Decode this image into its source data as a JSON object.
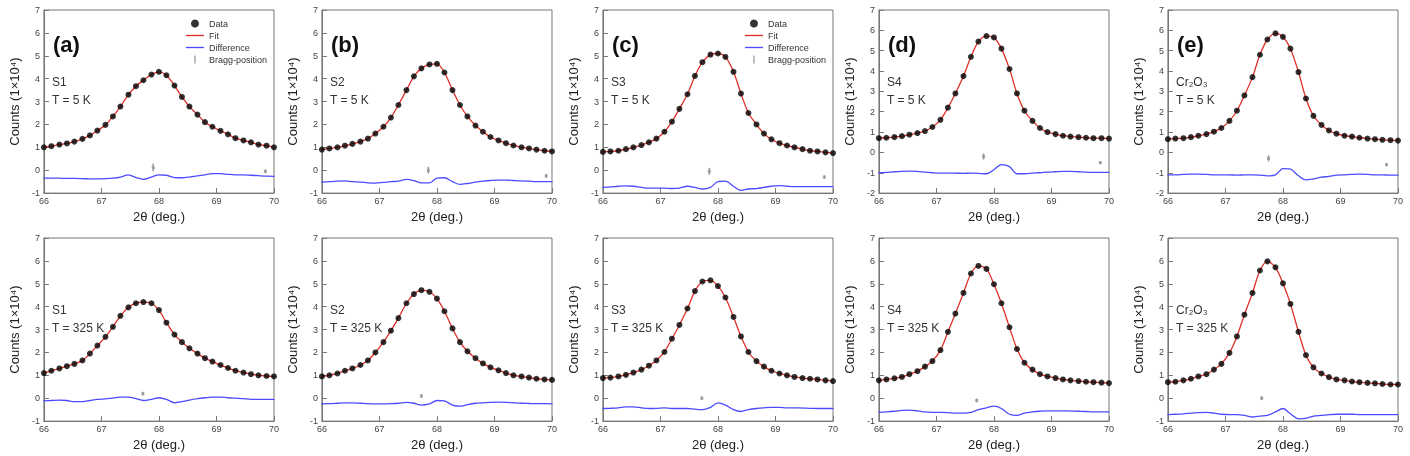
{
  "chart_data": [
    {
      "type": "scatter",
      "title": "(a)",
      "annotations": [
        "S1",
        "T = 5 K"
      ],
      "xlabel": "2θ (deg.)",
      "ylabel": "Counts (1×10⁴)",
      "xlim": [
        66,
        70
      ],
      "xticks": [
        66,
        67,
        68,
        69,
        70
      ],
      "ylim": [
        -1,
        7
      ],
      "yticks": [
        -1,
        0,
        1,
        2,
        3,
        4,
        5,
        6,
        7
      ],
      "grid": false,
      "legend": "top right",
      "x": [
        66.0,
        66.13,
        66.27,
        66.4,
        66.53,
        66.67,
        66.8,
        66.93,
        67.07,
        67.2,
        67.33,
        67.47,
        67.6,
        67.73,
        67.87,
        68.0,
        68.13,
        68.27,
        68.4,
        68.53,
        68.67,
        68.8,
        68.93,
        69.07,
        69.2,
        69.33,
        69.47,
        69.6,
        69.73,
        69.87,
        70.0
      ],
      "series": [
        {
          "name": "Data",
          "marker": "circle",
          "color": "#000000",
          "values": [
            1.0,
            1.05,
            1.12,
            1.17,
            1.25,
            1.37,
            1.52,
            1.73,
            1.98,
            2.35,
            2.78,
            3.3,
            3.67,
            3.93,
            4.18,
            4.3,
            4.15,
            3.7,
            3.2,
            2.78,
            2.43,
            2.1,
            1.9,
            1.72,
            1.57,
            1.4,
            1.3,
            1.22,
            1.12,
            1.07,
            1.0
          ]
        },
        {
          "name": "Fit",
          "type": "line",
          "marker": "none",
          "color": "#e0302a",
          "values": [
            1.0,
            1.05,
            1.12,
            1.17,
            1.25,
            1.37,
            1.52,
            1.73,
            1.98,
            2.35,
            2.78,
            3.3,
            3.67,
            3.93,
            4.18,
            4.3,
            4.15,
            3.7,
            3.2,
            2.78,
            2.43,
            2.1,
            1.9,
            1.72,
            1.57,
            1.4,
            1.3,
            1.22,
            1.12,
            1.07,
            1.0
          ]
        },
        {
          "name": "Difference",
          "type": "line",
          "marker": "none",
          "color": "#4b4bff",
          "values": [
            -0.35,
            -0.35,
            -0.35,
            -0.36,
            -0.36,
            -0.37,
            -0.38,
            -0.38,
            -0.37,
            -0.35,
            -0.3,
            -0.2,
            -0.32,
            -0.4,
            -0.3,
            -0.2,
            -0.22,
            -0.32,
            -0.33,
            -0.3,
            -0.25,
            -0.2,
            -0.15,
            -0.15,
            -0.18,
            -0.2,
            -0.2,
            -0.22,
            -0.24,
            -0.26,
            -0.27
          ]
        },
        {
          "name": "Bragg-position",
          "marker": "square",
          "color": "#999999",
          "x": [
            67.9,
            69.85
          ],
          "values": [
            0.12,
            -0.05
          ],
          "errors": [
            0.17,
            0.08
          ]
        }
      ]
    },
    {
      "type": "scatter",
      "title": "(b)",
      "annotations": [
        "S2",
        "T = 5 K"
      ],
      "xlabel": "2θ (deg.)",
      "ylabel": "Counts (1×10⁴)",
      "xlim": [
        66,
        70
      ],
      "xticks": [
        66,
        67,
        68,
        69,
        70
      ],
      "ylim": [
        -1,
        7
      ],
      "yticks": [
        -1,
        0,
        1,
        2,
        3,
        4,
        5,
        6,
        7
      ],
      "grid": false,
      "x": [
        66.0,
        66.13,
        66.27,
        66.4,
        66.53,
        66.67,
        66.8,
        66.93,
        67.07,
        67.2,
        67.33,
        67.47,
        67.6,
        67.73,
        67.87,
        68.0,
        68.13,
        68.27,
        68.4,
        68.53,
        68.67,
        68.8,
        68.93,
        69.07,
        69.2,
        69.33,
        69.47,
        69.6,
        69.73,
        69.87,
        70.0
      ],
      "series": [
        {
          "marker": "circle",
          "color": "#000000",
          "values": [
            0.9,
            0.95,
            1.0,
            1.07,
            1.15,
            1.25,
            1.38,
            1.6,
            1.9,
            2.3,
            2.85,
            3.5,
            4.1,
            4.45,
            4.62,
            4.65,
            4.27,
            3.5,
            2.85,
            2.35,
            1.95,
            1.68,
            1.45,
            1.3,
            1.18,
            1.08,
            1.0,
            0.95,
            0.9,
            0.85,
            0.82
          ]
        },
        {
          "type": "line",
          "marker": "none",
          "color": "#e0302a",
          "values": [
            0.9,
            0.95,
            1.0,
            1.07,
            1.15,
            1.25,
            1.38,
            1.6,
            1.9,
            2.3,
            2.85,
            3.5,
            4.1,
            4.45,
            4.62,
            4.65,
            4.27,
            3.5,
            2.85,
            2.35,
            1.95,
            1.68,
            1.45,
            1.3,
            1.18,
            1.08,
            1.0,
            0.95,
            0.9,
            0.85,
            0.82
          ]
        },
        {
          "type": "line",
          "marker": "none",
          "color": "#4b4bff",
          "values": [
            -0.52,
            -0.5,
            -0.48,
            -0.47,
            -0.5,
            -0.52,
            -0.55,
            -0.56,
            -0.53,
            -0.5,
            -0.48,
            -0.4,
            -0.45,
            -0.55,
            -0.55,
            -0.35,
            -0.33,
            -0.5,
            -0.62,
            -0.58,
            -0.52,
            -0.48,
            -0.45,
            -0.43,
            -0.43,
            -0.45,
            -0.47,
            -0.48,
            -0.5,
            -0.5,
            -0.5
          ]
        },
        {
          "marker": "square",
          "color": "#999999",
          "x": [
            67.85,
            69.9
          ],
          "values": [
            0.0,
            -0.25
          ],
          "errors": [
            0.15,
            0.08
          ]
        }
      ]
    },
    {
      "type": "scatter",
      "title": "(c)",
      "annotations": [
        "S3",
        "T = 5 K"
      ],
      "xlabel": "2θ (deg.)",
      "ylabel": "Counts (1×10⁴)",
      "xlim": [
        66,
        70
      ],
      "xticks": [
        66,
        67,
        68,
        69,
        70
      ],
      "ylim": [
        -1,
        7
      ],
      "yticks": [
        -1,
        0,
        1,
        2,
        3,
        4,
        5,
        6,
        7
      ],
      "grid": false,
      "legend": "top right",
      "x": [
        66.0,
        66.13,
        66.27,
        66.4,
        66.53,
        66.67,
        66.8,
        66.93,
        67.07,
        67.2,
        67.33,
        67.47,
        67.6,
        67.73,
        67.87,
        68.0,
        68.13,
        68.27,
        68.4,
        68.53,
        68.67,
        68.8,
        68.93,
        69.07,
        69.2,
        69.33,
        69.47,
        69.6,
        69.73,
        69.87,
        70.0
      ],
      "series": [
        {
          "name": "Data",
          "marker": "circle",
          "color": "#000000",
          "values": [
            0.8,
            0.82,
            0.85,
            0.92,
            1.0,
            1.1,
            1.22,
            1.38,
            1.68,
            2.12,
            2.68,
            3.32,
            4.12,
            4.72,
            5.05,
            5.1,
            4.95,
            4.3,
            3.35,
            2.5,
            2.0,
            1.6,
            1.35,
            1.18,
            1.08,
            1.0,
            0.92,
            0.85,
            0.82,
            0.78,
            0.75
          ]
        },
        {
          "name": "Fit",
          "type": "line",
          "marker": "none",
          "color": "#e0302a",
          "values": [
            0.8,
            0.82,
            0.85,
            0.92,
            1.0,
            1.1,
            1.22,
            1.38,
            1.68,
            2.12,
            2.68,
            3.32,
            4.12,
            4.72,
            5.05,
            5.1,
            4.95,
            4.3,
            3.35,
            2.5,
            2.0,
            1.6,
            1.35,
            1.18,
            1.08,
            1.0,
            0.92,
            0.85,
            0.82,
            0.78,
            0.75
          ]
        },
        {
          "name": "Difference",
          "type": "line",
          "marker": "none",
          "color": "#4b4bff",
          "values": [
            -0.75,
            -0.73,
            -0.7,
            -0.68,
            -0.7,
            -0.75,
            -0.78,
            -0.78,
            -0.78,
            -0.8,
            -0.78,
            -0.7,
            -0.75,
            -0.82,
            -0.75,
            -0.5,
            -0.48,
            -0.7,
            -0.88,
            -0.82,
            -0.8,
            -0.75,
            -0.7,
            -0.67,
            -0.7,
            -0.72,
            -0.72,
            -0.72,
            -0.72,
            -0.72,
            -0.72
          ]
        },
        {
          "name": "Bragg-position",
          "marker": "square",
          "color": "#999999",
          "x": [
            67.85,
            69.85
          ],
          "values": [
            -0.05,
            -0.3
          ],
          "errors": [
            0.15,
            0.08
          ]
        }
      ]
    },
    {
      "type": "scatter",
      "title": "(d)",
      "annotations": [
        "S4",
        "T = 5 K"
      ],
      "xlabel": "2θ (deg.)",
      "ylabel": "Counts (1×10⁴)",
      "xlim": [
        66,
        70
      ],
      "xticks": [
        66,
        67,
        68,
        69,
        70
      ],
      "ylim": [
        -2,
        7
      ],
      "yticks": [
        -2,
        -1,
        0,
        1,
        2,
        3,
        4,
        5,
        6,
        7
      ],
      "grid": false,
      "x": [
        66.0,
        66.13,
        66.27,
        66.4,
        66.53,
        66.67,
        66.8,
        66.93,
        67.07,
        67.2,
        67.33,
        67.47,
        67.6,
        67.73,
        67.87,
        68.0,
        68.13,
        68.27,
        68.4,
        68.53,
        68.67,
        68.8,
        68.93,
        69.07,
        69.2,
        69.33,
        69.47,
        69.6,
        69.73,
        69.87,
        70.0
      ],
      "series": [
        {
          "marker": "circle",
          "color": "#000000",
          "values": [
            0.7,
            0.72,
            0.75,
            0.8,
            0.87,
            0.95,
            1.05,
            1.25,
            1.6,
            2.2,
            2.9,
            3.75,
            4.7,
            5.45,
            5.72,
            5.65,
            5.1,
            4.1,
            2.9,
            2.05,
            1.55,
            1.2,
            1.0,
            0.9,
            0.82,
            0.78,
            0.75,
            0.72,
            0.7,
            0.7,
            0.68
          ]
        },
        {
          "type": "line",
          "marker": "none",
          "color": "#e0302a",
          "values": [
            0.7,
            0.72,
            0.75,
            0.8,
            0.87,
            0.95,
            1.05,
            1.25,
            1.6,
            2.2,
            2.9,
            3.75,
            4.7,
            5.45,
            5.72,
            5.65,
            5.1,
            4.1,
            2.9,
            2.05,
            1.55,
            1.2,
            1.0,
            0.9,
            0.82,
            0.78,
            0.75,
            0.72,
            0.7,
            0.7,
            0.68
          ]
        },
        {
          "type": "line",
          "marker": "none",
          "color": "#4b4bff",
          "values": [
            -1.0,
            -0.98,
            -0.95,
            -0.93,
            -0.92,
            -0.93,
            -0.97,
            -1.0,
            -1.02,
            -1.02,
            -1.02,
            -1.03,
            -1.02,
            -1.03,
            -1.05,
            -0.85,
            -0.6,
            -0.7,
            -1.05,
            -1.05,
            -1.02,
            -1.0,
            -0.97,
            -0.95,
            -0.93,
            -0.93,
            -0.95,
            -0.97,
            -0.98,
            -0.98,
            -0.98
          ]
        },
        {
          "marker": "square",
          "color": "#999999",
          "x": [
            67.82,
            69.85
          ],
          "values": [
            -0.2,
            -0.5
          ],
          "errors": [
            0.15,
            0.08
          ]
        }
      ]
    },
    {
      "type": "scatter",
      "title": "(e)",
      "annotations": [
        "Cr₂O₃",
        "T = 5 K"
      ],
      "xlabel": "2θ (deg.)",
      "ylabel": "Counts (1×10⁴)",
      "xlim": [
        66,
        70
      ],
      "xticks": [
        66,
        67,
        68,
        69,
        70
      ],
      "ylim": [
        -2,
        7
      ],
      "yticks": [
        -2,
        -1,
        0,
        1,
        2,
        3,
        4,
        5,
        6,
        7
      ],
      "grid": false,
      "x": [
        66.0,
        66.13,
        66.27,
        66.4,
        66.53,
        66.67,
        66.8,
        66.93,
        67.07,
        67.2,
        67.33,
        67.47,
        67.6,
        67.73,
        67.87,
        68.0,
        68.13,
        68.27,
        68.4,
        68.53,
        68.67,
        68.8,
        68.93,
        69.07,
        69.2,
        69.33,
        69.47,
        69.6,
        69.73,
        69.87,
        70.0
      ],
      "series": [
        {
          "marker": "circle",
          "color": "#000000",
          "values": [
            0.65,
            0.68,
            0.7,
            0.75,
            0.82,
            0.9,
            1.02,
            1.2,
            1.55,
            2.05,
            2.8,
            3.7,
            4.8,
            5.55,
            5.85,
            5.68,
            5.1,
            3.95,
            2.65,
            1.8,
            1.35,
            1.08,
            0.92,
            0.82,
            0.78,
            0.72,
            0.68,
            0.65,
            0.62,
            0.6,
            0.58
          ]
        },
        {
          "type": "line",
          "marker": "none",
          "color": "#e0302a",
          "values": [
            0.65,
            0.68,
            0.7,
            0.75,
            0.82,
            0.9,
            1.02,
            1.2,
            1.55,
            2.05,
            2.8,
            3.7,
            4.8,
            5.55,
            5.85,
            5.68,
            5.1,
            3.95,
            2.65,
            1.8,
            1.35,
            1.08,
            0.92,
            0.82,
            0.78,
            0.72,
            0.68,
            0.65,
            0.62,
            0.6,
            0.58
          ]
        },
        {
          "type": "line",
          "marker": "none",
          "color": "#4b4bff",
          "values": [
            -1.1,
            -1.1,
            -1.08,
            -1.07,
            -1.07,
            -1.08,
            -1.1,
            -1.1,
            -1.1,
            -1.12,
            -1.1,
            -1.1,
            -1.12,
            -1.15,
            -1.1,
            -0.8,
            -0.82,
            -1.15,
            -1.35,
            -1.3,
            -1.22,
            -1.18,
            -1.12,
            -1.1,
            -1.08,
            -1.07,
            -1.08,
            -1.1,
            -1.1,
            -1.12,
            -1.12
          ]
        },
        {
          "marker": "square",
          "color": "#999999",
          "x": [
            67.75,
            69.8
          ],
          "values": [
            -0.3,
            -0.6
          ],
          "errors": [
            0.15,
            0.08
          ]
        }
      ]
    },
    {
      "type": "scatter",
      "annotations": [
        "S1",
        "T = 325 K"
      ],
      "xlabel": "2θ (deg.)",
      "ylabel": "Counts (1×10⁴)",
      "xlim": [
        66,
        70
      ],
      "xticks": [
        66,
        67,
        68,
        69,
        70
      ],
      "ylim": [
        -1,
        7
      ],
      "yticks": [
        -1,
        0,
        1,
        2,
        3,
        4,
        5,
        6,
        7
      ],
      "grid": false,
      "x": [
        66.0,
        66.13,
        66.27,
        66.4,
        66.53,
        66.67,
        66.8,
        66.93,
        67.07,
        67.2,
        67.33,
        67.47,
        67.6,
        67.73,
        67.87,
        68.0,
        68.13,
        68.27,
        68.4,
        68.53,
        68.67,
        68.8,
        68.93,
        69.07,
        69.2,
        69.33,
        69.47,
        69.6,
        69.73,
        69.87,
        70.0
      ],
      "series": [
        {
          "marker": "circle",
          "color": "#000000",
          "values": [
            1.1,
            1.2,
            1.3,
            1.4,
            1.5,
            1.65,
            1.95,
            2.3,
            2.68,
            3.12,
            3.6,
            3.97,
            4.15,
            4.2,
            4.15,
            3.85,
            3.3,
            2.78,
            2.45,
            2.18,
            1.95,
            1.75,
            1.6,
            1.45,
            1.32,
            1.2,
            1.12,
            1.05,
            1.0,
            0.97,
            0.95
          ]
        },
        {
          "type": "line",
          "marker": "none",
          "color": "#e0302a",
          "values": [
            1.1,
            1.2,
            1.3,
            1.4,
            1.5,
            1.65,
            1.95,
            2.3,
            2.68,
            3.12,
            3.6,
            3.97,
            4.15,
            4.2,
            4.15,
            3.85,
            3.3,
            2.78,
            2.45,
            2.18,
            1.95,
            1.75,
            1.6,
            1.45,
            1.32,
            1.2,
            1.12,
            1.05,
            1.0,
            0.97,
            0.95
          ]
        },
        {
          "type": "line",
          "marker": "none",
          "color": "#4b4bff",
          "values": [
            -0.12,
            -0.1,
            -0.08,
            -0.1,
            -0.15,
            -0.15,
            -0.1,
            -0.05,
            -0.03,
            0.0,
            0.05,
            0.05,
            -0.02,
            -0.1,
            -0.05,
            0.02,
            -0.05,
            -0.2,
            -0.15,
            -0.08,
            -0.02,
            0.02,
            0.05,
            0.05,
            0.02,
            0.0,
            -0.02,
            -0.05,
            -0.05,
            -0.05,
            -0.05
          ]
        },
        {
          "marker": "square",
          "color": "#999999",
          "x": [
            67.72
          ],
          "values": [
            0.2
          ],
          "errors": [
            0.08
          ]
        }
      ]
    },
    {
      "type": "scatter",
      "annotations": [
        "S2",
        "T = 325 K"
      ],
      "xlabel": "2θ (deg.)",
      "ylabel": "Counts (1×10⁴)",
      "xlim": [
        66,
        70
      ],
      "xticks": [
        66,
        67,
        68,
        69,
        70
      ],
      "ylim": [
        -1,
        7
      ],
      "yticks": [
        -1,
        0,
        1,
        2,
        3,
        4,
        5,
        6,
        7
      ],
      "grid": false,
      "x": [
        66.0,
        66.13,
        66.27,
        66.4,
        66.53,
        66.67,
        66.8,
        66.93,
        67.07,
        67.2,
        67.33,
        67.47,
        67.6,
        67.73,
        67.87,
        68.0,
        68.13,
        68.27,
        68.4,
        68.53,
        68.67,
        68.8,
        68.93,
        69.07,
        69.2,
        69.33,
        69.47,
        69.6,
        69.73,
        69.87,
        70.0
      ],
      "series": [
        {
          "marker": "circle",
          "color": "#000000",
          "values": [
            0.95,
            1.0,
            1.08,
            1.2,
            1.3,
            1.45,
            1.65,
            2.0,
            2.45,
            2.95,
            3.5,
            4.15,
            4.55,
            4.72,
            4.65,
            4.35,
            3.8,
            3.05,
            2.45,
            2.05,
            1.75,
            1.52,
            1.35,
            1.22,
            1.1,
            1.0,
            0.95,
            0.9,
            0.85,
            0.82,
            0.8
          ]
        },
        {
          "type": "line",
          "marker": "none",
          "color": "#e0302a",
          "values": [
            0.95,
            1.0,
            1.08,
            1.2,
            1.3,
            1.45,
            1.65,
            2.0,
            2.45,
            2.95,
            3.5,
            4.15,
            4.55,
            4.72,
            4.65,
            4.35,
            3.8,
            3.05,
            2.45,
            2.05,
            1.75,
            1.52,
            1.35,
            1.22,
            1.1,
            1.0,
            0.95,
            0.9,
            0.85,
            0.82,
            0.8
          ]
        },
        {
          "type": "line",
          "marker": "none",
          "color": "#4b4bff",
          "values": [
            -0.25,
            -0.24,
            -0.22,
            -0.2,
            -0.2,
            -0.22,
            -0.24,
            -0.25,
            -0.25,
            -0.24,
            -0.22,
            -0.18,
            -0.22,
            -0.3,
            -0.25,
            -0.1,
            -0.12,
            -0.3,
            -0.35,
            -0.28,
            -0.22,
            -0.2,
            -0.18,
            -0.17,
            -0.18,
            -0.2,
            -0.22,
            -0.23,
            -0.24,
            -0.24,
            -0.25
          ]
        },
        {
          "marker": "square",
          "color": "#999999",
          "x": [
            67.73
          ],
          "values": [
            0.1
          ],
          "errors": [
            0.08
          ]
        }
      ]
    },
    {
      "type": "scatter",
      "annotations": [
        "S3",
        "T = 325 K"
      ],
      "xlabel": "2θ (deg.)",
      "ylabel": "Counts (1×10⁴)",
      "xlim": [
        66,
        70
      ],
      "xticks": [
        66,
        67,
        68,
        69,
        70
      ],
      "ylim": [
        -1,
        7
      ],
      "yticks": [
        -1,
        0,
        1,
        2,
        3,
        4,
        5,
        6,
        7
      ],
      "grid": false,
      "x": [
        66.0,
        66.13,
        66.27,
        66.4,
        66.53,
        66.67,
        66.8,
        66.93,
        67.07,
        67.2,
        67.33,
        67.47,
        67.6,
        67.73,
        67.87,
        68.0,
        68.13,
        68.27,
        68.4,
        68.53,
        68.67,
        68.8,
        68.93,
        69.07,
        69.2,
        69.33,
        69.47,
        69.6,
        69.73,
        69.87,
        70.0
      ],
      "series": [
        {
          "marker": "circle",
          "color": "#000000",
          "values": [
            0.88,
            0.9,
            0.95,
            1.02,
            1.12,
            1.25,
            1.42,
            1.65,
            2.02,
            2.6,
            3.2,
            3.92,
            4.68,
            5.1,
            5.15,
            4.9,
            4.4,
            3.55,
            2.7,
            2.02,
            1.62,
            1.38,
            1.2,
            1.08,
            1.0,
            0.93,
            0.88,
            0.85,
            0.82,
            0.78,
            0.75
          ]
        },
        {
          "type": "line",
          "marker": "none",
          "color": "#e0302a",
          "values": [
            0.88,
            0.9,
            0.95,
            1.02,
            1.12,
            1.25,
            1.42,
            1.65,
            2.02,
            2.6,
            3.2,
            3.92,
            4.68,
            5.1,
            5.15,
            4.9,
            4.4,
            3.55,
            2.7,
            2.02,
            1.62,
            1.38,
            1.2,
            1.08,
            1.0,
            0.93,
            0.88,
            0.85,
            0.82,
            0.78,
            0.75
          ]
        },
        {
          "type": "line",
          "marker": "none",
          "color": "#4b4bff",
          "values": [
            -0.45,
            -0.44,
            -0.42,
            -0.38,
            -0.38,
            -0.42,
            -0.45,
            -0.44,
            -0.42,
            -0.45,
            -0.45,
            -0.45,
            -0.48,
            -0.5,
            -0.4,
            -0.2,
            -0.3,
            -0.5,
            -0.58,
            -0.5,
            -0.45,
            -0.42,
            -0.4,
            -0.4,
            -0.42,
            -0.42,
            -0.43,
            -0.44,
            -0.45,
            -0.45,
            -0.45
          ]
        },
        {
          "marker": "square",
          "color": "#999999",
          "x": [
            67.72
          ],
          "values": [
            0.0
          ],
          "errors": [
            0.08
          ]
        }
      ]
    },
    {
      "type": "scatter",
      "annotations": [
        "S4",
        "T = 325 K"
      ],
      "xlabel": "2θ (deg.)",
      "ylabel": "Counts (1×10⁴)",
      "xlim": [
        66,
        70
      ],
      "xticks": [
        66,
        67,
        68,
        69,
        70
      ],
      "ylim": [
        -1,
        7
      ],
      "yticks": [
        -1,
        0,
        1,
        2,
        3,
        4,
        5,
        6,
        7
      ],
      "grid": false,
      "x": [
        66.0,
        66.13,
        66.27,
        66.4,
        66.53,
        66.67,
        66.8,
        66.93,
        67.07,
        67.2,
        67.33,
        67.47,
        67.6,
        67.73,
        67.87,
        68.0,
        68.13,
        68.27,
        68.4,
        68.53,
        68.67,
        68.8,
        68.93,
        69.07,
        69.2,
        69.33,
        69.47,
        69.6,
        69.73,
        69.87,
        70.0
      ],
      "series": [
        {
          "marker": "circle",
          "color": "#000000",
          "values": [
            0.78,
            0.82,
            0.87,
            0.93,
            1.05,
            1.18,
            1.38,
            1.62,
            2.1,
            2.9,
            3.7,
            4.6,
            5.45,
            5.78,
            5.65,
            4.98,
            4.15,
            3.1,
            2.15,
            1.55,
            1.25,
            1.05,
            0.95,
            0.88,
            0.82,
            0.78,
            0.75,
            0.72,
            0.7,
            0.68,
            0.66
          ]
        },
        {
          "type": "line",
          "marker": "none",
          "color": "#e0302a",
          "values": [
            0.78,
            0.82,
            0.87,
            0.93,
            1.05,
            1.18,
            1.38,
            1.62,
            2.1,
            2.9,
            3.7,
            4.6,
            5.45,
            5.78,
            5.65,
            4.98,
            4.15,
            3.1,
            2.15,
            1.55,
            1.25,
            1.05,
            0.95,
            0.88,
            0.82,
            0.78,
            0.75,
            0.72,
            0.7,
            0.68,
            0.66
          ]
        },
        {
          "type": "line",
          "marker": "none",
          "color": "#4b4bff",
          "values": [
            -0.62,
            -0.6,
            -0.57,
            -0.53,
            -0.52,
            -0.55,
            -0.6,
            -0.62,
            -0.62,
            -0.63,
            -0.65,
            -0.65,
            -0.62,
            -0.5,
            -0.42,
            -0.35,
            -0.45,
            -0.7,
            -0.75,
            -0.65,
            -0.6,
            -0.57,
            -0.55,
            -0.55,
            -0.55,
            -0.56,
            -0.57,
            -0.58,
            -0.6,
            -0.6,
            -0.6
          ]
        },
        {
          "marker": "square",
          "color": "#999999",
          "x": [
            67.7
          ],
          "values": [
            -0.1
          ],
          "errors": [
            0.08
          ]
        }
      ]
    },
    {
      "type": "scatter",
      "annotations": [
        "Cr₂O₃",
        "T = 325 K"
      ],
      "xlabel": "2θ (deg.)",
      "ylabel": "Counts (1×10⁴)",
      "xlim": [
        66,
        70
      ],
      "xticks": [
        66,
        67,
        68,
        69,
        70
      ],
      "ylim": [
        -1,
        7
      ],
      "yticks": [
        -1,
        0,
        1,
        2,
        3,
        4,
        5,
        6,
        7
      ],
      "grid": false,
      "x": [
        66.0,
        66.13,
        66.27,
        66.4,
        66.53,
        66.67,
        66.8,
        66.93,
        67.07,
        67.2,
        67.33,
        67.47,
        67.6,
        67.73,
        67.87,
        68.0,
        68.13,
        68.27,
        68.4,
        68.53,
        68.67,
        68.8,
        68.93,
        69.07,
        69.2,
        69.33,
        69.47,
        69.6,
        69.73,
        69.87,
        70.0
      ],
      "series": [
        {
          "marker": "circle",
          "color": "#000000",
          "values": [
            0.7,
            0.72,
            0.78,
            0.85,
            0.95,
            1.05,
            1.25,
            1.5,
            1.98,
            2.7,
            3.65,
            4.6,
            5.58,
            5.98,
            5.72,
            5.02,
            4.12,
            2.9,
            1.88,
            1.35,
            1.08,
            0.92,
            0.82,
            0.78,
            0.73,
            0.7,
            0.67,
            0.65,
            0.62,
            0.6,
            0.6
          ]
        },
        {
          "type": "line",
          "marker": "none",
          "color": "#e0302a",
          "values": [
            0.7,
            0.72,
            0.78,
            0.85,
            0.95,
            1.05,
            1.25,
            1.5,
            1.98,
            2.7,
            3.65,
            4.6,
            5.58,
            5.98,
            5.72,
            5.02,
            4.12,
            2.9,
            1.88,
            1.35,
            1.08,
            0.92,
            0.82,
            0.78,
            0.73,
            0.7,
            0.67,
            0.65,
            0.62,
            0.6,
            0.6
          ]
        },
        {
          "type": "line",
          "marker": "none",
          "color": "#4b4bff",
          "values": [
            -0.72,
            -0.7,
            -0.68,
            -0.65,
            -0.63,
            -0.62,
            -0.65,
            -0.7,
            -0.72,
            -0.72,
            -0.75,
            -0.82,
            -0.78,
            -0.75,
            -0.6,
            -0.45,
            -0.68,
            -0.9,
            -0.88,
            -0.78,
            -0.75,
            -0.72,
            -0.7,
            -0.7,
            -0.7,
            -0.72,
            -0.72,
            -0.72,
            -0.72,
            -0.72,
            -0.72
          ]
        },
        {
          "marker": "square",
          "color": "#999999",
          "x": [
            67.63
          ],
          "values": [
            0.0
          ],
          "errors": [
            0.08
          ]
        }
      ]
    }
  ]
}
